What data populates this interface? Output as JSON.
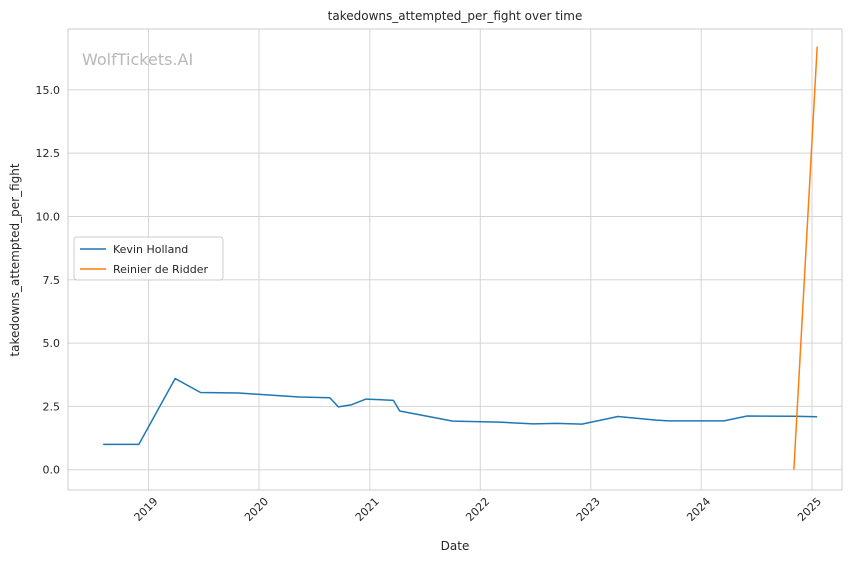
{
  "chart_data": {
    "type": "line",
    "title": "takedowns_attempted_per_fight over time",
    "xlabel": "Date",
    "ylabel": "takedowns_attempted_per_fight",
    "watermark": "WolfTickets.AI",
    "xlim": [
      "2018-04-10",
      "2025-04-10"
    ],
    "ylim": [
      -0.8,
      17.4
    ],
    "yticks": [
      0.0,
      2.5,
      5.0,
      7.5,
      10.0,
      12.5,
      15.0
    ],
    "ytick_labels": [
      "0.0",
      "2.5",
      "5.0",
      "7.5",
      "10.0",
      "12.5",
      "15.0"
    ],
    "xticks": [
      "2019-01-01",
      "2020-01-01",
      "2021-01-01",
      "2022-01-01",
      "2023-01-01",
      "2024-01-01",
      "2025-01-01"
    ],
    "xtick_labels": [
      "2019",
      "2020",
      "2021",
      "2022",
      "2023",
      "2024",
      "2025"
    ],
    "grid": true,
    "legend_position": "center-left",
    "series": [
      {
        "name": "Kevin Holland",
        "color": "#1f77b4",
        "x": [
          "2018-08-04",
          "2018-11-30",
          "2019-03-30",
          "2019-06-22",
          "2019-10-26",
          "2020-05-13",
          "2020-08-22",
          "2020-09-19",
          "2020-10-31",
          "2020-12-19",
          "2021-03-20",
          "2021-04-10",
          "2021-10-02",
          "2022-03-05",
          "2022-06-25",
          "2022-09-10",
          "2022-12-03",
          "2023-04-01",
          "2023-08-05",
          "2023-09-16",
          "2024-03-16",
          "2024-06-01",
          "2024-11-02",
          "2025-01-18"
        ],
        "y": [
          1.0,
          1.0,
          3.6,
          3.05,
          3.03,
          2.87,
          2.84,
          2.48,
          2.56,
          2.79,
          2.74,
          2.32,
          1.92,
          1.88,
          1.81,
          1.83,
          1.8,
          2.1,
          1.96,
          1.93,
          1.93,
          2.12,
          2.11,
          2.09
        ]
      },
      {
        "name": "Reinier de Ridder",
        "color": "#ff7f0e",
        "x": [
          "2024-11-02",
          "2025-01-18"
        ],
        "y": [
          0.0,
          16.7
        ]
      }
    ]
  }
}
